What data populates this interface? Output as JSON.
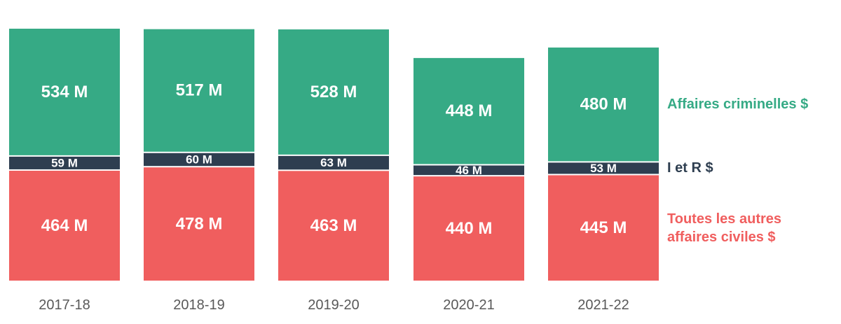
{
  "chart_data": {
    "type": "bar",
    "stacked": true,
    "categories": [
      "2017-18",
      "2018-19",
      "2019-20",
      "2020-21",
      "2021-22"
    ],
    "series": [
      {
        "name": "Toutes les autres affaires civiles $",
        "legend_lines": [
          "Toutes les autres",
          "affaires civiles $"
        ],
        "color": "#F05E5E",
        "values": [
          464,
          478,
          463,
          440,
          445
        ],
        "labels": [
          "464 M",
          "478 M",
          "463 M",
          "440 M",
          "445 M"
        ]
      },
      {
        "name": "I et R $",
        "legend_lines": [
          "I et R $"
        ],
        "color": "#2E3E50",
        "values": [
          59,
          60,
          63,
          46,
          53
        ],
        "labels": [
          "59 M",
          "60 M",
          "63 M",
          "46 M",
          "53 M"
        ]
      },
      {
        "name": "Affaires criminelles $",
        "legend_lines": [
          "Affaires criminelles $"
        ],
        "color": "#36AA85",
        "values": [
          534,
          517,
          528,
          448,
          480
        ],
        "labels": [
          "534 M",
          "517 M",
          "528 M",
          "448 M",
          "480 M"
        ]
      }
    ],
    "legend_placement": "right",
    "grid": false
  }
}
